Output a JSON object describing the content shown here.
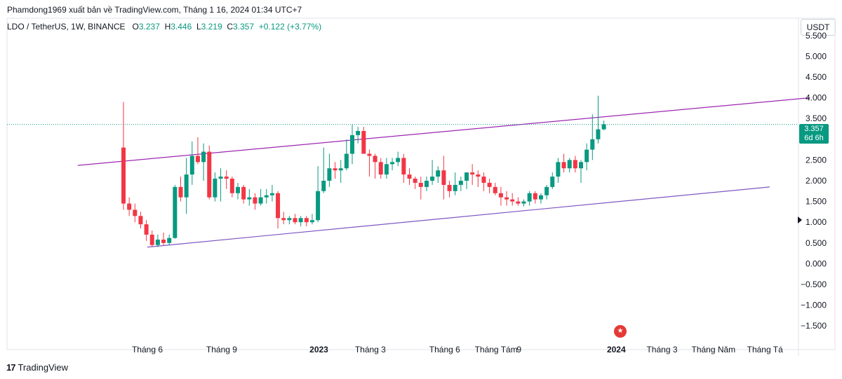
{
  "header": {
    "published": "Phamdong1969 xuất bản về TradingView.com, Tháng 1 16, 2024 01:34 UTC+7"
  },
  "legend": {
    "symbol": "LDO / TetherUS, 1W, BINANCE",
    "o_label": "O",
    "o_value": "3.237",
    "h_label": "H",
    "h_value": "3.446",
    "l_label": "L",
    "l_value": "3.219",
    "c_label": "C",
    "c_value": "3.357",
    "change": "+0.122 (+3.77%)"
  },
  "currency_button": "USDT",
  "price_badge": {
    "price": "3.357",
    "countdown": "6d 6h"
  },
  "footer": {
    "brand": "TradingView",
    "logo": "17"
  },
  "colors": {
    "up": "#089981",
    "down": "#f23645",
    "channel": "#9c27b0",
    "channel_lower": "#7e57c2",
    "price_line": "#089981"
  },
  "chart_data": {
    "type": "candlestick",
    "title": "LDO / TetherUS, 1W, BINANCE",
    "ylim": [
      -1.75,
      5.75
    ],
    "y_ticks": [
      "5.500",
      "5.000",
      "4.500",
      "4.000",
      "3.500",
      "3.000",
      "2.500",
      "2.000",
      "1.500",
      "1.000",
      "0.500",
      "0.000",
      "−0.500",
      "−1.000",
      "−1.500"
    ],
    "y_tick_values": [
      5.5,
      5.0,
      4.5,
      4.0,
      3.5,
      3.0,
      2.5,
      2.0,
      1.5,
      1.0,
      0.5,
      0.0,
      -0.5,
      -1.0,
      -1.5
    ],
    "x_ticks": [
      {
        "label": "Tháng 6",
        "bold": false,
        "week": 0
      },
      {
        "label": "Tháng 9",
        "bold": false,
        "week": 13
      },
      {
        "label": "2023",
        "bold": true,
        "week": 30
      },
      {
        "label": "Tháng 3",
        "bold": false,
        "week": 39
      },
      {
        "label": "Tháng 6",
        "bold": false,
        "week": 52
      },
      {
        "label": "Tháng Tám",
        "bold": false,
        "week": 61
      },
      {
        "label": "9",
        "bold": false,
        "week": 65
      },
      {
        "label": "2024",
        "bold": true,
        "week": 82
      },
      {
        "label": "Tháng 3",
        "bold": false,
        "week": 90
      },
      {
        "label": "Tháng Năm",
        "bold": false,
        "week": 99
      },
      {
        "label": "Tháng Tá",
        "bold": false,
        "week": 108
      }
    ],
    "candles": [
      [
        2.8,
        3.9,
        1.3,
        1.45
      ],
      [
        1.45,
        1.6,
        1.15,
        1.3
      ],
      [
        1.3,
        1.45,
        1.0,
        1.15
      ],
      [
        1.15,
        1.25,
        0.85,
        0.95
      ],
      [
        0.95,
        1.05,
        0.55,
        0.7
      ],
      [
        0.7,
        0.8,
        0.4,
        0.45
      ],
      [
        0.45,
        0.7,
        0.4,
        0.58
      ],
      [
        0.58,
        0.75,
        0.45,
        0.5
      ],
      [
        0.5,
        0.7,
        0.45,
        0.62
      ],
      [
        0.62,
        1.9,
        0.6,
        1.85
      ],
      [
        1.85,
        2.1,
        1.5,
        1.6
      ],
      [
        1.6,
        2.55,
        1.2,
        2.15
      ],
      [
        2.15,
        2.95,
        1.9,
        2.6
      ],
      [
        2.6,
        3.05,
        2.4,
        2.45
      ],
      [
        2.45,
        2.9,
        2.0,
        2.7
      ],
      [
        2.7,
        2.85,
        1.55,
        1.6
      ],
      [
        1.6,
        2.2,
        1.5,
        2.05
      ],
      [
        2.05,
        2.3,
        1.5,
        2.1
      ],
      [
        2.1,
        2.25,
        1.8,
        2.05
      ],
      [
        2.05,
        2.1,
        1.6,
        1.7
      ],
      [
        1.7,
        1.95,
        1.55,
        1.85
      ],
      [
        1.85,
        1.9,
        1.45,
        1.55
      ],
      [
        1.55,
        1.8,
        1.4,
        1.6
      ],
      [
        1.6,
        1.7,
        1.3,
        1.45
      ],
      [
        1.45,
        1.8,
        1.4,
        1.6
      ],
      [
        1.6,
        1.8,
        1.45,
        1.65
      ],
      [
        1.65,
        1.9,
        1.5,
        1.7
      ],
      [
        1.7,
        1.75,
        0.85,
        1.1
      ],
      [
        1.1,
        1.25,
        0.95,
        1.05
      ],
      [
        1.05,
        1.15,
        0.95,
        1.1
      ],
      [
        1.1,
        1.2,
        0.95,
        1.0
      ],
      [
        1.0,
        1.15,
        0.9,
        1.1
      ],
      [
        1.1,
        1.15,
        0.9,
        1.0
      ],
      [
        1.0,
        1.2,
        0.95,
        1.05
      ],
      [
        1.05,
        2.35,
        1.0,
        1.75
      ],
      [
        1.75,
        2.8,
        1.7,
        2.0
      ],
      [
        2.0,
        2.65,
        1.85,
        2.3
      ],
      [
        2.3,
        2.45,
        2.05,
        2.25
      ],
      [
        2.25,
        2.5,
        1.95,
        2.3
      ],
      [
        2.3,
        3.0,
        2.25,
        2.65
      ],
      [
        2.65,
        3.35,
        2.4,
        3.1
      ],
      [
        3.1,
        3.3,
        2.9,
        3.2
      ],
      [
        3.2,
        3.3,
        2.7,
        2.65
      ],
      [
        2.65,
        2.75,
        2.1,
        2.6
      ],
      [
        2.6,
        2.65,
        2.05,
        2.45
      ],
      [
        2.45,
        2.55,
        2.05,
        2.15
      ],
      [
        2.15,
        2.55,
        2.05,
        2.4
      ],
      [
        2.4,
        2.55,
        2.25,
        2.45
      ],
      [
        2.45,
        2.7,
        2.35,
        2.55
      ],
      [
        2.55,
        2.65,
        1.95,
        2.15
      ],
      [
        2.15,
        2.3,
        1.9,
        2.05
      ],
      [
        2.05,
        2.1,
        1.8,
        1.95
      ],
      [
        1.95,
        2.1,
        1.55,
        1.85
      ],
      [
        1.85,
        2.1,
        1.75,
        2.0
      ],
      [
        2.0,
        2.5,
        1.9,
        2.1
      ],
      [
        2.1,
        2.35,
        1.95,
        2.25
      ],
      [
        2.25,
        2.6,
        1.55,
        1.9
      ],
      [
        1.9,
        2.0,
        1.6,
        1.75
      ],
      [
        1.75,
        2.2,
        1.65,
        1.9
      ],
      [
        1.9,
        2.1,
        1.75,
        2.0
      ],
      [
        2.0,
        2.2,
        1.8,
        2.2
      ],
      [
        2.2,
        2.4,
        1.9,
        2.15
      ],
      [
        2.15,
        2.25,
        1.85,
        2.1
      ],
      [
        2.1,
        2.2,
        1.75,
        1.95
      ],
      [
        1.95,
        2.05,
        1.7,
        1.85
      ],
      [
        1.85,
        1.95,
        1.65,
        1.7
      ],
      [
        1.7,
        1.85,
        1.4,
        1.6
      ],
      [
        1.6,
        1.75,
        1.4,
        1.55
      ],
      [
        1.55,
        1.7,
        1.4,
        1.5
      ],
      [
        1.5,
        1.6,
        1.4,
        1.45
      ],
      [
        1.45,
        1.55,
        1.38,
        1.5
      ],
      [
        1.5,
        1.75,
        1.4,
        1.7
      ],
      [
        1.7,
        1.75,
        1.45,
        1.55
      ],
      [
        1.55,
        1.7,
        1.45,
        1.65
      ],
      [
        1.65,
        1.9,
        1.55,
        1.85
      ],
      [
        1.85,
        2.2,
        1.8,
        2.1
      ],
      [
        2.1,
        2.55,
        1.95,
        2.45
      ],
      [
        2.45,
        2.65,
        2.2,
        2.3
      ],
      [
        2.3,
        2.55,
        2.2,
        2.5
      ],
      [
        2.5,
        2.6,
        2.2,
        2.3
      ],
      [
        2.3,
        2.5,
        1.95,
        2.45
      ],
      [
        2.45,
        2.9,
        2.25,
        2.75
      ],
      [
        2.75,
        3.6,
        2.5,
        3.0
      ],
      [
        3.0,
        4.05,
        2.9,
        3.24
      ],
      [
        3.24,
        3.45,
        3.22,
        3.36
      ]
    ],
    "channel_upper": [
      [
        -8,
        2.37
      ],
      [
        120,
        4.0
      ]
    ],
    "channel_lower": [
      [
        0,
        0.4
      ],
      [
        113,
        1.85
      ]
    ],
    "last_price": 3.357
  }
}
